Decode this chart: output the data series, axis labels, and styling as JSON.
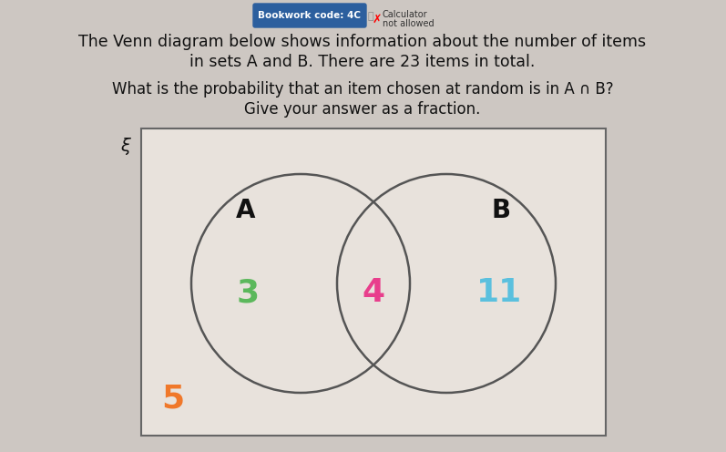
{
  "background_color": "#cdc7c2",
  "title_line1": "The Venn diagram below shows information about the number of items",
  "title_line2": "in sets A and B. There are 23 items in total.",
  "question_line1": "What is the probability that an item chosen at random is in A ∩ B?",
  "question_line2": "Give your answer as a fraction.",
  "bookwork_code": "Bookwork code: 4C",
  "venn_bg": "#e8e2dc",
  "venn_border": "#666666",
  "circle_color": "#555555",
  "value_A_only": "3",
  "value_A_only_color": "#5cb85c",
  "value_intersection": "4",
  "value_intersection_color": "#e83e8c",
  "value_B_only": "11",
  "value_B_only_color": "#5bc0de",
  "value_outside": "5",
  "value_outside_color": "#f0782a",
  "label_A": "A",
  "label_B": "B",
  "label_xi": "ξ",
  "figwidth": 7.97,
  "figheight": 4.96,
  "dpi": 100
}
